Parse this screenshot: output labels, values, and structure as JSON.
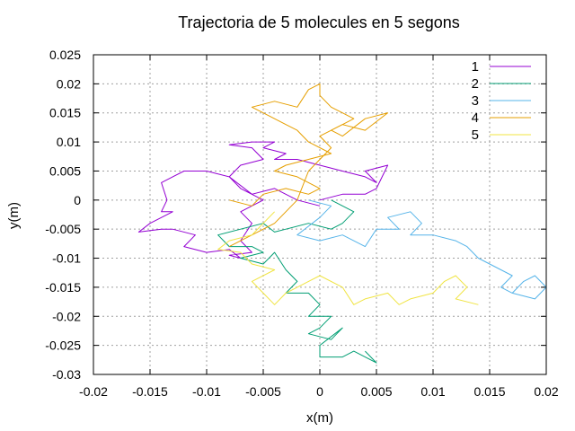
{
  "chart_data": {
    "type": "line",
    "title": "Trajectoria de 5 molecules en 5 segons",
    "xlabel": "x(m)",
    "ylabel": "y(m)",
    "xlim": [
      -0.02,
      0.02
    ],
    "ylim": [
      -0.03,
      0.025
    ],
    "xticks": [
      "-0.02",
      "-0.015",
      "-0.01",
      "-0.005",
      "0",
      "0.005",
      "0.01",
      "0.015",
      "0.02"
    ],
    "yticks": [
      "0.025",
      "0.02",
      "0.015",
      "0.01",
      "0.005",
      "0",
      "-0.005",
      "-0.01",
      "-0.015",
      "-0.02",
      "-0.025",
      "-0.03"
    ],
    "grid": true,
    "legend_position": "top-right",
    "series": [
      {
        "name": "1",
        "color": "#9400d3",
        "points": [
          [
            0,
            -0.001
          ],
          [
            -0.002,
            0.0
          ],
          [
            -0.004,
            0.002
          ],
          [
            -0.006,
            0.001
          ],
          [
            -0.008,
            0.004
          ],
          [
            -0.01,
            0.005
          ],
          [
            -0.012,
            0.005
          ],
          [
            -0.013,
            0.004
          ],
          [
            -0.014,
            0.003
          ],
          [
            -0.0135,
            0.0
          ],
          [
            -0.014,
            -0.002
          ],
          [
            -0.013,
            -0.002
          ],
          [
            -0.015,
            -0.004
          ],
          [
            -0.016,
            -0.0055
          ],
          [
            -0.014,
            -0.005
          ],
          [
            -0.013,
            -0.005
          ],
          [
            -0.011,
            -0.006
          ],
          [
            -0.012,
            -0.008
          ],
          [
            -0.01,
            -0.009
          ],
          [
            -0.008,
            -0.0085
          ],
          [
            -0.007,
            -0.01
          ],
          [
            -0.008,
            -0.0095
          ],
          [
            -0.006,
            -0.009
          ],
          [
            -0.007,
            -0.007
          ],
          [
            -0.006,
            -0.004
          ],
          [
            -0.007,
            -0.002
          ],
          [
            -0.005,
            0.0
          ],
          [
            -0.007,
            0.002
          ],
          [
            -0.008,
            0.004
          ],
          [
            -0.007,
            0.006
          ],
          [
            -0.005,
            0.007
          ],
          [
            -0.006,
            0.009
          ],
          [
            -0.008,
            0.0095
          ],
          [
            -0.006,
            0.01
          ],
          [
            -0.004,
            0.01
          ],
          [
            -0.005,
            0.009
          ],
          [
            -0.003,
            0.008
          ],
          [
            -0.004,
            0.007
          ],
          [
            -0.002,
            0.007
          ],
          [
            0.0,
            0.006
          ],
          [
            0.002,
            0.005
          ],
          [
            0.004,
            0.004
          ],
          [
            0.005,
            0.003
          ],
          [
            0.004,
            0.005
          ],
          [
            0.006,
            0.006
          ],
          [
            0.005,
            0.002
          ],
          [
            0.004,
            0.001
          ],
          [
            0.002,
            0.001
          ],
          [
            0.0,
            0.0
          ]
        ]
      },
      {
        "name": "2",
        "color": "#009e73",
        "points": [
          [
            0.001,
            0.0
          ],
          [
            0.002,
            -0.001
          ],
          [
            0.003,
            -0.002
          ],
          [
            0.002,
            -0.004
          ],
          [
            0.001,
            -0.005
          ],
          [
            -0.001,
            -0.004
          ],
          [
            -0.003,
            -0.005
          ],
          [
            -0.004,
            -0.0055
          ],
          [
            -0.005,
            -0.004
          ],
          [
            -0.007,
            -0.005
          ],
          [
            -0.009,
            -0.006
          ],
          [
            -0.008,
            -0.008
          ],
          [
            -0.006,
            -0.008
          ],
          [
            -0.005,
            -0.009
          ],
          [
            -0.007,
            -0.01
          ],
          [
            -0.005,
            -0.011
          ],
          [
            -0.004,
            -0.009
          ],
          [
            -0.003,
            -0.012
          ],
          [
            -0.002,
            -0.014
          ],
          [
            -0.003,
            -0.016
          ],
          [
            -0.001,
            -0.016
          ],
          [
            0.0,
            -0.018
          ],
          [
            -0.001,
            -0.02
          ],
          [
            0.001,
            -0.02
          ],
          [
            0.0,
            -0.022
          ],
          [
            -0.001,
            -0.023
          ],
          [
            0.001,
            -0.024
          ],
          [
            0.002,
            -0.022
          ],
          [
            0.0,
            -0.025
          ],
          [
            0.0,
            -0.027
          ],
          [
            0.002,
            -0.027
          ],
          [
            0.003,
            -0.026
          ],
          [
            0.004,
            -0.027
          ],
          [
            0.005,
            -0.028
          ],
          [
            0.004,
            -0.026
          ]
        ]
      },
      {
        "name": "3",
        "color": "#56b4e9",
        "points": [
          [
            -0.001,
            0.0
          ],
          [
            0.001,
            -0.001
          ],
          [
            0.0,
            -0.003
          ],
          [
            -0.002,
            -0.006
          ],
          [
            0.0,
            -0.007
          ],
          [
            0.002,
            -0.006
          ],
          [
            0.004,
            -0.008
          ],
          [
            0.005,
            -0.005
          ],
          [
            0.007,
            -0.005
          ],
          [
            0.006,
            -0.003
          ],
          [
            0.008,
            -0.002
          ],
          [
            0.009,
            -0.004
          ],
          [
            0.008,
            -0.006
          ],
          [
            0.01,
            -0.006
          ],
          [
            0.012,
            -0.007
          ],
          [
            0.013,
            -0.008
          ],
          [
            0.014,
            -0.01
          ],
          [
            0.015,
            -0.011
          ],
          [
            0.016,
            -0.012
          ],
          [
            0.017,
            -0.013
          ],
          [
            0.016,
            -0.015
          ],
          [
            0.017,
            -0.016
          ],
          [
            0.018,
            -0.014
          ],
          [
            0.019,
            -0.013
          ],
          [
            0.02,
            -0.015
          ],
          [
            0.019,
            -0.017
          ],
          [
            0.017,
            -0.016
          ]
        ]
      },
      {
        "name": "4",
        "color": "#e69f00",
        "points": [
          [
            -0.008,
            0.0
          ],
          [
            -0.006,
            -0.001
          ],
          [
            -0.005,
            0.001
          ],
          [
            -0.003,
            0.002
          ],
          [
            -0.001,
            0.001
          ],
          [
            0.0,
            0.002
          ],
          [
            -0.002,
            0.004
          ],
          [
            -0.004,
            0.005
          ],
          [
            -0.003,
            0.006
          ],
          [
            -0.001,
            0.007
          ],
          [
            0.001,
            0.008
          ],
          [
            -0.001,
            0.01
          ],
          [
            -0.002,
            0.012
          ],
          [
            -0.003,
            0.013
          ],
          [
            -0.005,
            0.015
          ],
          [
            -0.006,
            0.016
          ],
          [
            -0.004,
            0.017
          ],
          [
            -0.002,
            0.016
          ],
          [
            -0.001,
            0.019
          ],
          [
            0.0,
            0.02
          ],
          [
            0.0,
            0.018
          ],
          [
            0.001,
            0.016
          ],
          [
            0.002,
            0.015
          ],
          [
            0.003,
            0.014
          ],
          [
            0.001,
            0.012
          ],
          [
            0.002,
            0.011
          ],
          [
            0.004,
            0.014
          ],
          [
            0.006,
            0.015
          ],
          [
            0.004,
            0.012
          ],
          [
            0.002,
            0.013
          ],
          [
            0.0,
            0.011
          ],
          [
            0.001,
            0.009
          ],
          [
            -0.001,
            0.005
          ],
          [
            -0.002,
            0.0
          ],
          [
            -0.004,
            -0.004
          ],
          [
            -0.006,
            -0.006
          ],
          [
            -0.008,
            -0.008
          ]
        ]
      },
      {
        "name": "5",
        "color": "#f0e442",
        "points": [
          [
            -0.004,
            -0.002
          ],
          [
            -0.005,
            -0.004
          ],
          [
            -0.006,
            -0.006
          ],
          [
            -0.008,
            -0.007
          ],
          [
            -0.009,
            -0.0085
          ],
          [
            -0.007,
            -0.009
          ],
          [
            -0.006,
            -0.011
          ],
          [
            -0.004,
            -0.012
          ],
          [
            -0.006,
            -0.014
          ],
          [
            -0.005,
            -0.016
          ],
          [
            -0.004,
            -0.018
          ],
          [
            -0.003,
            -0.016
          ],
          [
            -0.001,
            -0.014
          ],
          [
            0.0,
            -0.013
          ],
          [
            0.002,
            -0.015
          ],
          [
            0.003,
            -0.018
          ],
          [
            0.004,
            -0.017
          ],
          [
            0.006,
            -0.016
          ],
          [
            0.007,
            -0.018
          ],
          [
            0.008,
            -0.017
          ],
          [
            0.01,
            -0.016
          ],
          [
            0.011,
            -0.014
          ],
          [
            0.012,
            -0.013
          ],
          [
            0.013,
            -0.015
          ],
          [
            0.012,
            -0.017
          ],
          [
            0.014,
            -0.018
          ]
        ]
      }
    ]
  }
}
